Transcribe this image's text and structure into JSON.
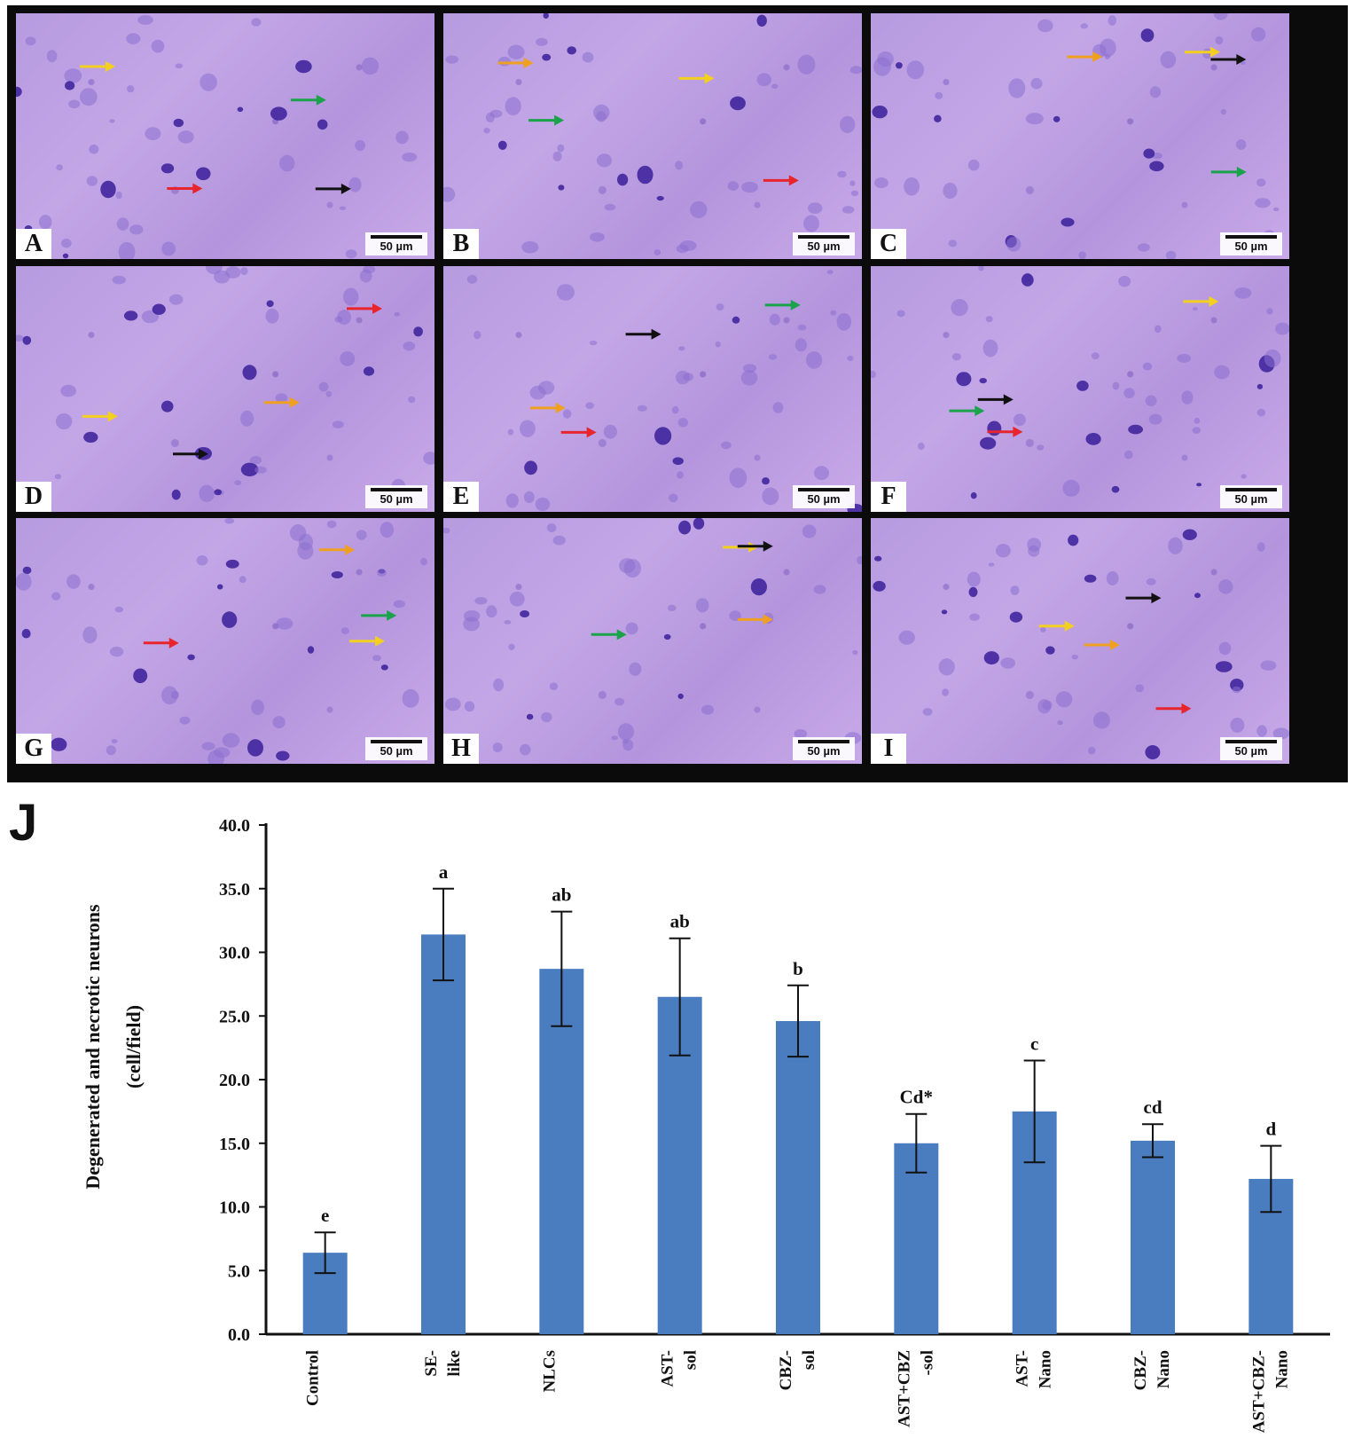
{
  "panels": [
    {
      "letter": "A",
      "scale": "50 µm"
    },
    {
      "letter": "B",
      "scale": "50 µm"
    },
    {
      "letter": "C",
      "scale": "50 µm"
    },
    {
      "letter": "D",
      "scale": "50 µm"
    },
    {
      "letter": "E",
      "scale": "50 µm"
    },
    {
      "letter": "F",
      "scale": "50 µm"
    },
    {
      "letter": "G",
      "scale": "50 µm"
    },
    {
      "letter": "H",
      "scale": "50 µm"
    },
    {
      "letter": "I",
      "scale": "50 µm"
    }
  ],
  "arrow_colors": {
    "black": "#111111",
    "red": "#e8242c",
    "green": "#1aa34a",
    "yellow": "#f3d020",
    "orange": "#f0a020"
  },
  "chart_data": {
    "type": "bar",
    "panel_letter": "J",
    "categories": [
      [
        "Control"
      ],
      [
        "SE-",
        "like"
      ],
      [
        "NLCs"
      ],
      [
        "AST-",
        "sol"
      ],
      [
        "CBZ-",
        "sol"
      ],
      [
        "AST+CBZ",
        "-sol"
      ],
      [
        "AST-",
        "Nano"
      ],
      [
        "CBZ-",
        "Nano"
      ],
      [
        "AST+CBZ-",
        "Nano"
      ]
    ],
    "values": [
      6.4,
      31.4,
      28.7,
      26.5,
      24.6,
      15.0,
      17.5,
      15.2,
      12.2
    ],
    "errors": [
      1.6,
      3.6,
      4.5,
      4.6,
      2.8,
      2.3,
      4.0,
      1.3,
      2.6
    ],
    "letters": [
      "e",
      "a",
      "ab",
      "ab",
      "b",
      "Cd*",
      "c",
      "cd",
      "d"
    ],
    "ylabel_lines": [
      "Degenerated and necrotic neurons",
      "(cell/field)"
    ],
    "ylim": [
      0,
      40
    ],
    "yticks": [
      "0.0",
      "5.0",
      "10.0",
      "15.0",
      "20.0",
      "25.0",
      "30.0",
      "35.0",
      "40.0"
    ],
    "bar_color": "#4a7cc0",
    "grid": false
  }
}
